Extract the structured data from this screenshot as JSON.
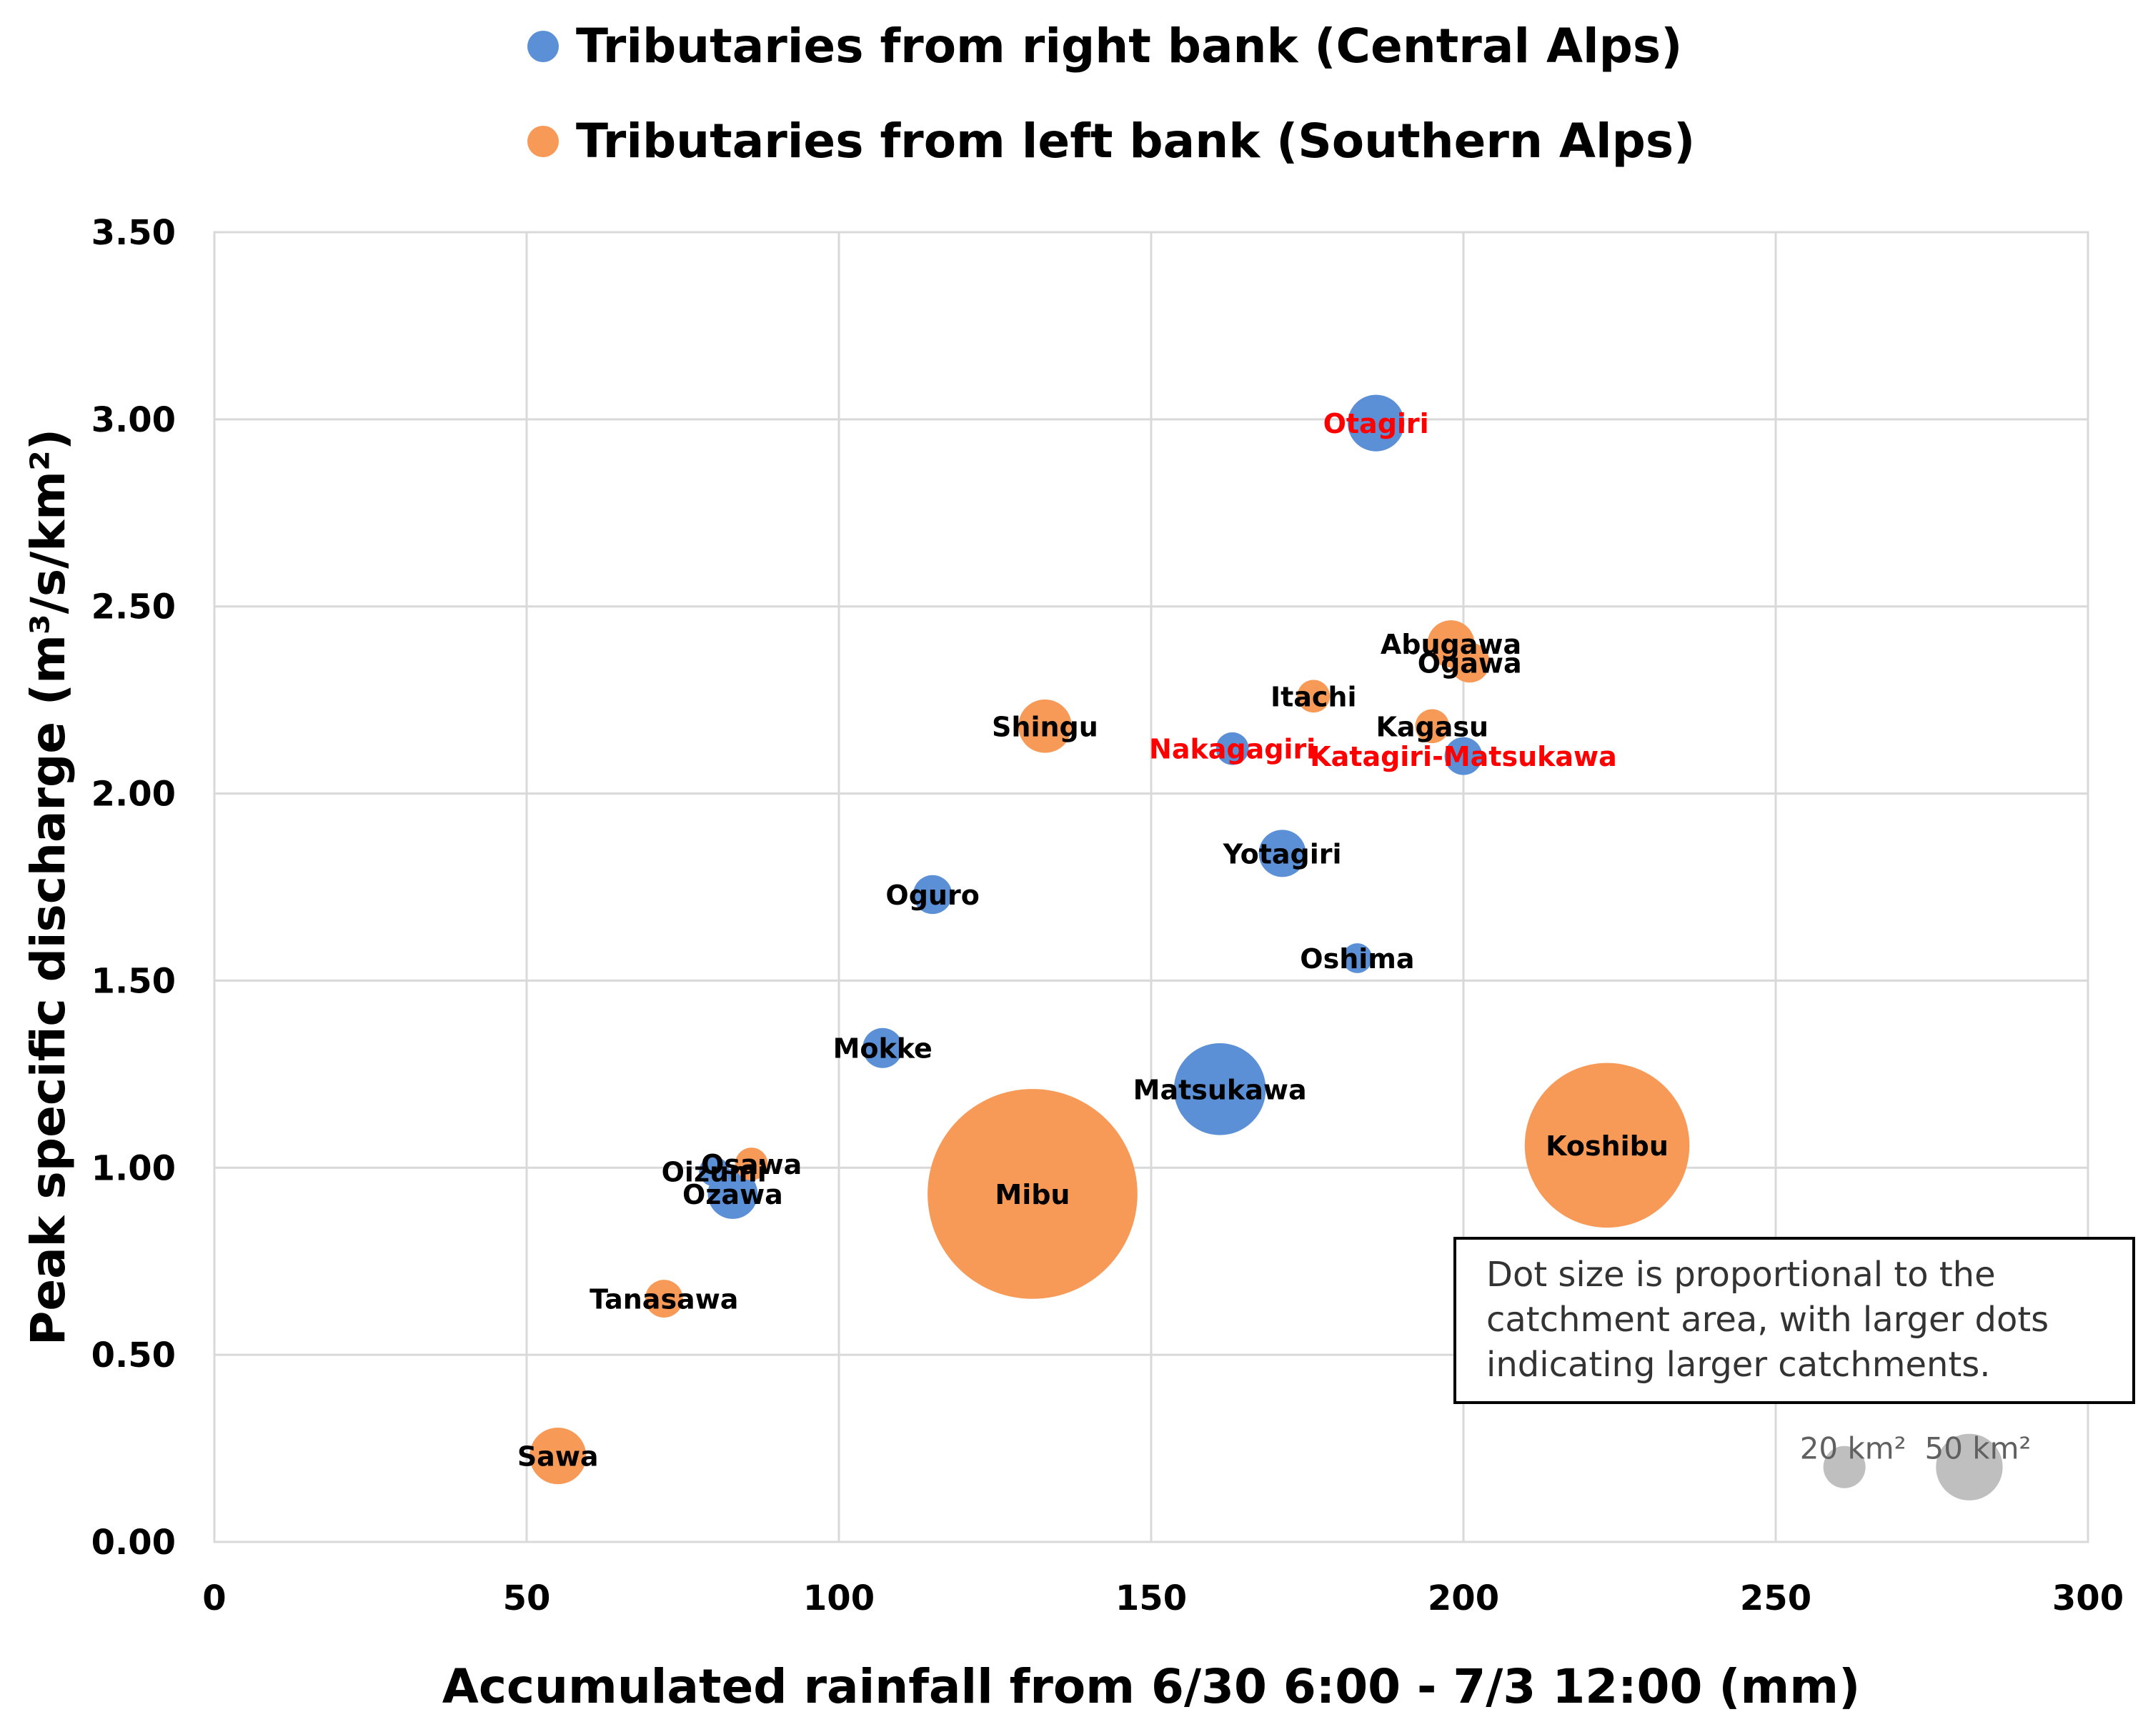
{
  "chart_data": {
    "type": "bubble",
    "legend": [
      {
        "name": "Tributaries from right bank (Central Alps)",
        "color": "#5b8fd6"
      },
      {
        "name": "Tributaries from left bank (Southern Alps)",
        "color": "#f79a58"
      }
    ],
    "xlabel": "Accumulated rainfall from 6/30 6:00 - 7/3 12:00 (mm)",
    "ylabel": "Peak specific discharge (m³/s/km²)",
    "xlim": [
      0,
      300
    ],
    "ylim": [
      0,
      3.5
    ],
    "xticks": [
      0,
      50,
      100,
      150,
      200,
      250,
      300
    ],
    "yticks": [
      "0.00",
      "0.50",
      "1.00",
      "1.50",
      "2.00",
      "2.50",
      "3.00",
      "3.50"
    ],
    "grid": true,
    "points": [
      {
        "name": "Otagiri",
        "series": 0,
        "x": 186,
        "y": 2.99,
        "area": 36,
        "label_color": "#ff0000"
      },
      {
        "name": "Abugawa",
        "series": 1,
        "x": 198,
        "y": 2.4,
        "area": 25,
        "label_color": "#000000"
      },
      {
        "name": "Ogawa",
        "series": 1,
        "x": 201,
        "y": 2.35,
        "area": 18,
        "label_color": "#000000"
      },
      {
        "name": "Itachi",
        "series": 1,
        "x": 176,
        "y": 2.26,
        "area": 12,
        "label_color": "#000000"
      },
      {
        "name": "Kagasu",
        "series": 1,
        "x": 195,
        "y": 2.18,
        "area": 13,
        "label_color": "#000000"
      },
      {
        "name": "Katagiri-Matsukawa",
        "series": 0,
        "x": 200,
        "y": 2.1,
        "area": 16,
        "label_color": "#ff0000"
      },
      {
        "name": "Nakagagiri",
        "series": 0,
        "x": 163,
        "y": 2.12,
        "area": 12,
        "label_color": "#ff0000"
      },
      {
        "name": "Shingu",
        "series": 1,
        "x": 133,
        "y": 2.18,
        "area": 32,
        "label_color": "#000000"
      },
      {
        "name": "Yotagiri",
        "series": 0,
        "x": 171,
        "y": 1.84,
        "area": 25,
        "label_color": "#000000"
      },
      {
        "name": "Oguro",
        "series": 0,
        "x": 115,
        "y": 1.73,
        "area": 17,
        "label_color": "#000000"
      },
      {
        "name": "Oshima",
        "series": 0,
        "x": 183,
        "y": 1.56,
        "area": 10,
        "label_color": "#000000"
      },
      {
        "name": "Mokke",
        "series": 0,
        "x": 107,
        "y": 1.32,
        "area": 18,
        "label_color": "#000000"
      },
      {
        "name": "Matsukawa",
        "series": 0,
        "x": 161,
        "y": 1.21,
        "area": 95,
        "label_color": "#000000"
      },
      {
        "name": "Koshibu",
        "series": 1,
        "x": 223,
        "y": 1.06,
        "area": 305,
        "label_color": "#000000"
      },
      {
        "name": "Mibu",
        "series": 1,
        "x": 131,
        "y": 0.93,
        "area": 495,
        "label_color": "#000000"
      },
      {
        "name": "Osawa",
        "series": 1,
        "x": 86,
        "y": 1.01,
        "area": 12,
        "label_color": "#000000"
      },
      {
        "name": "Oizumi",
        "series": 0,
        "x": 80,
        "y": 0.99,
        "area": 10,
        "label_color": "#000000"
      },
      {
        "name": "Ozawa",
        "series": 0,
        "x": 83,
        "y": 0.93,
        "area": 28,
        "label_color": "#000000"
      },
      {
        "name": "Tanasawa",
        "series": 1,
        "x": 72,
        "y": 0.65,
        "area": 16,
        "label_color": "#000000"
      },
      {
        "name": "Sawa",
        "series": 1,
        "x": 55,
        "y": 0.23,
        "area": 36,
        "label_color": "#000000"
      }
    ],
    "reference": [
      {
        "label": "20 km²",
        "x": 261,
        "y": 0.2,
        "area": 20,
        "color": "#bfbfbf"
      },
      {
        "label": "50 km²",
        "x": 281,
        "y": 0.2,
        "area": 50,
        "color": "#bfbfbf"
      }
    ],
    "note": [
      "Dot size is proportional to the",
      "catchment area, with larger dots",
      "indicating larger catchments."
    ]
  }
}
